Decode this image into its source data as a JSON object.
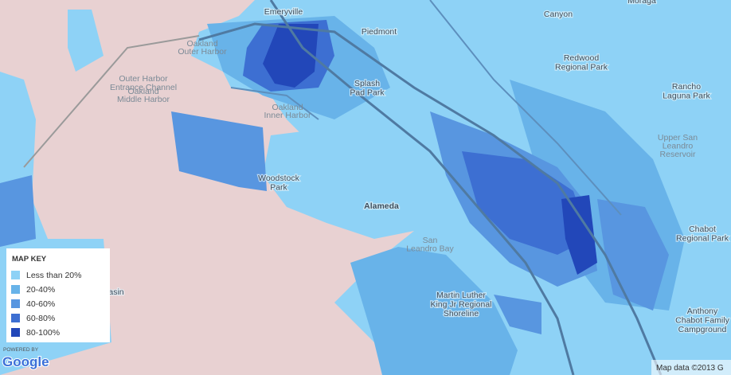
{
  "places": [
    {
      "lines": [
        "Emeryville"
      ]
    },
    {
      "lines": [
        "Piedmont"
      ]
    },
    {
      "lines": [
        "Canyon"
      ]
    },
    {
      "lines": [
        "Moraga"
      ]
    },
    {
      "lines": [
        "Oakland",
        "Outer Harbor"
      ]
    },
    {
      "lines": [
        "Outer Harbor",
        "Entrance Channel"
      ]
    },
    {
      "lines": [
        "Oakland",
        "Middle Harbor"
      ]
    },
    {
      "lines": [
        "Redwood",
        "Regional Park"
      ]
    },
    {
      "lines": [
        "Splash",
        "Pad Park"
      ]
    },
    {
      "lines": [
        "Rancho",
        "Laguna Park"
      ]
    },
    {
      "lines": [
        "Oakland",
        "Inner Harbor"
      ]
    },
    {
      "lines": [
        "Upper San",
        "Leandro",
        "Reservoir"
      ]
    },
    {
      "lines": [
        "Woodstock",
        "Park"
      ]
    },
    {
      "lines": [
        "Alameda"
      ]
    },
    {
      "lines": [
        "Chabot",
        "Regional Park"
      ]
    },
    {
      "lines": [
        "San",
        "Leandro Bay"
      ]
    },
    {
      "lines": [
        "Martin Luther",
        "King Jr Regional",
        "Shoreline"
      ]
    },
    {
      "lines": [
        "Anthony",
        "Chabot Family",
        "Campground"
      ]
    },
    {
      "lines": [
        "asin"
      ]
    }
  ],
  "map_key": {
    "title": "MAP KEY",
    "entries": [
      {
        "label": "Less than 20%",
        "color": "#8ed2f6"
      },
      {
        "label": "20-40%",
        "color": "#68b3e9"
      },
      {
        "label": "40-60%",
        "color": "#5896e0"
      },
      {
        "label": "60-80%",
        "color": "#3d6fd2"
      },
      {
        "label": "80-100%",
        "color": "#2247b9"
      }
    ]
  },
  "attribution": {
    "powered_by": "POWERED BY",
    "logo": "Google",
    "map_data": "Map data ©2013 G"
  }
}
